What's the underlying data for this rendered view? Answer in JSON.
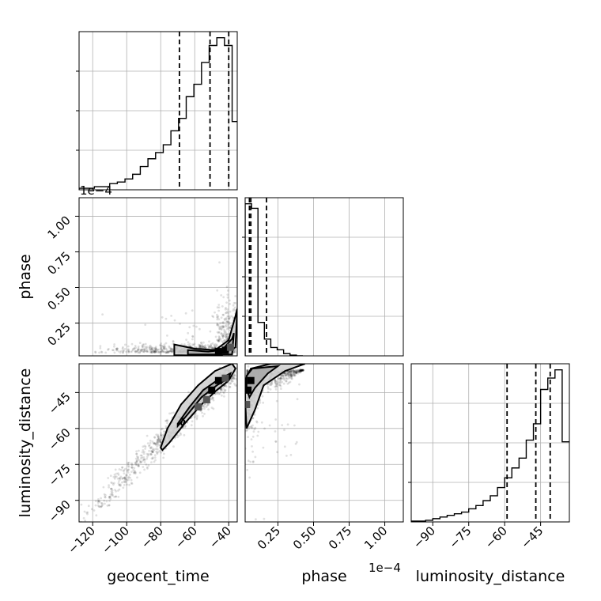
{
  "chart_data": {
    "type": "corner",
    "parameters": [
      "geocent_time",
      "phase",
      "luminosity_distance"
    ],
    "axis_labels": {
      "geocent_time": "geocent_time",
      "phase": "phase",
      "luminosity_distance": "luminosity_distance"
    },
    "offset_text": {
      "phase": "1e−4"
    },
    "ranges": {
      "geocent_time": [
        -128,
        -35
      ],
      "phase": [
        2e-06,
        0.000113
      ],
      "luminosity_distance": [
        -99,
        -33
      ]
    },
    "ticks": {
      "geocent_time": {
        "values": [
          -120,
          -100,
          -80,
          -60,
          -40
        ],
        "labels": [
          "−120",
          "−100",
          "−80",
          "−60",
          "−40"
        ]
      },
      "phase": {
        "values": [
          2.5e-05,
          5e-05,
          7.5e-05,
          0.0001
        ],
        "labels": [
          "0.25",
          "0.50",
          "0.75",
          "1.00"
        ]
      },
      "phase_y": {
        "values": [
          2.5e-05,
          5e-05,
          7.5e-05,
          0.0001
        ],
        "labels": [
          "0.25",
          "0.50",
          "0.75",
          "1.00"
        ]
      },
      "luminosity_distance": {
        "values": [
          -90,
          -75,
          -60,
          -45
        ],
        "labels": [
          "−90",
          "−75",
          "−60",
          "−45"
        ]
      }
    },
    "quantiles": {
      "geocent_time": [
        -69,
        -51,
        -40
      ],
      "phase": [
        5e-06,
        6e-06,
        1.7e-05
      ],
      "luminosity_distance": [
        -59,
        -47,
        -41
      ]
    },
    "histograms": {
      "geocent_time": {
        "bin_edges": [
          -128,
          -123.5,
          -119,
          -114.5,
          -110,
          -105.5,
          -101,
          -96.5,
          -92,
          -87.5,
          -83,
          -78.5,
          -74,
          -69.5,
          -65,
          -60.5,
          -56,
          -51.5,
          -47,
          -42.5,
          -38,
          -35
        ],
        "counts": [
          0.01,
          0.01,
          0.02,
          0.02,
          0.04,
          0.05,
          0.07,
          0.1,
          0.15,
          0.2,
          0.24,
          0.29,
          0.38,
          0.46,
          0.6,
          0.68,
          0.82,
          0.93,
          0.98,
          0.93,
          0.44
        ]
      },
      "phase": {
        "bin_edges": [
          2e-06,
          6.5e-06,
          1.1e-05,
          1.55e-05,
          2e-05,
          2.45e-05,
          2.9e-05,
          3.35e-05,
          3.8e-05,
          4.25e-05
        ],
        "counts": [
          1.0,
          0.97,
          0.22,
          0.11,
          0.055,
          0.04,
          0.015,
          0.005,
          0.0
        ]
      },
      "luminosity_distance": {
        "bin_edges": [
          -99,
          -96,
          -93,
          -90,
          -87,
          -84,
          -81,
          -78,
          -75,
          -72,
          -69,
          -66,
          -63,
          -60,
          -57,
          -54,
          -51,
          -48,
          -45,
          -42,
          -39,
          -36,
          -33
        ],
        "counts": [
          0.005,
          0.005,
          0.01,
          0.02,
          0.03,
          0.04,
          0.05,
          0.06,
          0.08,
          0.1,
          0.13,
          0.16,
          0.21,
          0.27,
          0.33,
          0.39,
          0.5,
          0.6,
          0.81,
          0.88,
          0.93,
          0.49
        ]
      }
    },
    "contours": {
      "luminosity_distance_vs_geocent_time": [
        {
          "level": "outer",
          "points": [
            [
              -80,
              -68
            ],
            [
              -76,
              -60
            ],
            [
              -68,
              -50
            ],
            [
              -58,
              -42
            ],
            [
              -48,
              -36
            ],
            [
              -38,
              -33
            ],
            [
              -36,
              -35
            ],
            [
              -40,
              -40
            ],
            [
              -47,
              -44
            ],
            [
              -56,
              -50
            ],
            [
              -66,
              -58
            ],
            [
              -75,
              -66
            ],
            [
              -79,
              -69
            ]
          ]
        },
        {
          "level": "inner",
          "points": [
            [
              -70,
              -58
            ],
            [
              -63,
              -51
            ],
            [
              -55,
              -44
            ],
            [
              -47,
              -40
            ],
            [
              -39,
              -37
            ],
            [
              -40,
              -39
            ],
            [
              -47,
              -42
            ],
            [
              -56,
              -47
            ],
            [
              -64,
              -54
            ],
            [
              -70,
              -59
            ]
          ]
        },
        {
          "level": "core",
          "points": [
            [
              -68,
              -58
            ],
            [
              -67,
              -56
            ],
            [
              -66,
              -57
            ],
            [
              -67,
              -59
            ]
          ]
        }
      ],
      "phase_vs_geocent_time": [
        {
          "level": "outer",
          "points": [
            [
              -72,
              1e-05
            ],
            [
              -60,
              7e-06
            ],
            [
              -48,
              6e-06
            ],
            [
              -40,
              1.3e-05
            ],
            [
              -36,
              3e-05
            ],
            [
              -35,
              3.5e-05
            ],
            [
              -36,
              8e-06
            ],
            [
              -45,
              2e-06
            ],
            [
              -72,
              2.5e-06
            ]
          ]
        },
        {
          "level": "inner",
          "points": [
            [
              -64,
              6e-06
            ],
            [
              -52,
              5e-06
            ],
            [
              -44,
              6e-06
            ],
            [
              -38,
              1.4e-05
            ],
            [
              -37,
              1.8e-05
            ],
            [
              -38,
              3e-06
            ],
            [
              -64,
              3e-06
            ]
          ]
        },
        {
          "level": "core",
          "points": [
            [
              -43,
              6e-06
            ],
            [
              -41,
              1e-05
            ],
            [
              -39,
              8e-06
            ],
            [
              -41,
              5e-06
            ]
          ]
        }
      ],
      "luminosity_distance_vs_phase": [
        {
          "level": "outer",
          "points": [
            [
              2e-06,
              -48
            ],
            [
              3e-06,
              -60
            ],
            [
              9e-06,
              -52
            ],
            [
              1.5e-05,
              -42
            ],
            [
              3e-05,
              -36
            ],
            [
              4.4e-05,
              -33
            ],
            [
              2e-05,
              -33
            ],
            [
              6e-06,
              -35
            ],
            [
              2e-06,
              -40
            ]
          ]
        },
        {
          "level": "inner",
          "points": [
            [
              3e-06,
              -43
            ],
            [
              5e-06,
              -47
            ],
            [
              9e-06,
              -43
            ],
            [
              1.8e-05,
              -37
            ],
            [
              2.5e-05,
              -34
            ],
            [
              7e-06,
              -35
            ],
            [
              3e-06,
              -38
            ]
          ]
        }
      ]
    },
    "density_peaks": {
      "luminosity_distance_vs_geocent_time": [
        [
          -50,
          -44
        ],
        [
          -46,
          -40
        ],
        [
          -42,
          -39
        ],
        [
          -53,
          -48
        ],
        [
          -58,
          -51
        ]
      ],
      "phase_vs_geocent_time": [
        [
          -42,
          6e-06
        ],
        [
          -46,
          5e-06
        ],
        [
          -39,
          8e-06
        ]
      ],
      "luminosity_distance_vs_phase": [
        [
          4e-06,
          -44
        ],
        [
          6e-06,
          -40
        ],
        [
          3e-06,
          -50
        ]
      ]
    },
    "grid": true
  }
}
